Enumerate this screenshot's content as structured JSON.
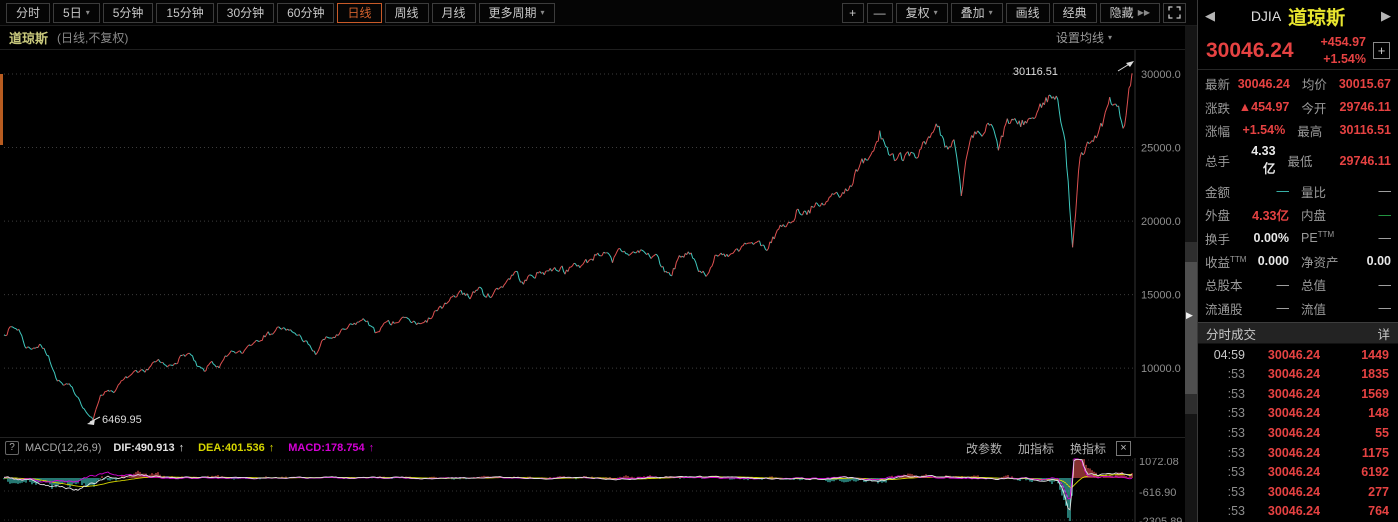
{
  "colors": {
    "up": "#dd5050",
    "down": "#3fc8be",
    "red": "#e64242",
    "cyan": "#3fc8be",
    "green": "#27a84a",
    "white": "#e8e8e8",
    "gray": "#b4b4b4",
    "yellow": "#d6d600",
    "magenta": "#d400d4",
    "accent_orange": "#c85a28",
    "grid": "#3c3c3c",
    "axis_text": "#8e8e8e"
  },
  "toolbar": {
    "period_tabs": [
      {
        "id": "intraday",
        "label": "分时",
        "selected": false,
        "dropdown": false
      },
      {
        "id": "5day",
        "label": "5日",
        "selected": false,
        "dropdown": true
      },
      {
        "id": "5min",
        "label": "5分钟",
        "selected": false,
        "dropdown": false
      },
      {
        "id": "15min",
        "label": "15分钟",
        "selected": false,
        "dropdown": false
      },
      {
        "id": "30min",
        "label": "30分钟",
        "selected": false,
        "dropdown": false
      },
      {
        "id": "60min",
        "label": "60分钟",
        "selected": false,
        "dropdown": false
      },
      {
        "id": "daily",
        "label": "日线",
        "selected": true,
        "dropdown": false
      },
      {
        "id": "weekly",
        "label": "周线",
        "selected": false,
        "dropdown": false
      },
      {
        "id": "monthly",
        "label": "月线",
        "selected": false,
        "dropdown": false
      },
      {
        "id": "more-periods",
        "label": "更多周期",
        "selected": false,
        "dropdown": true
      }
    ],
    "zoom_in": "+",
    "zoom_out": "—",
    "right_buttons": [
      {
        "id": "adjust",
        "label": "复权",
        "dropdown": true
      },
      {
        "id": "overlay",
        "label": "叠加",
        "dropdown": true
      },
      {
        "id": "draw-line",
        "label": "画线",
        "dropdown": false
      },
      {
        "id": "classic",
        "label": "经典",
        "dropdown": false
      },
      {
        "id": "hide",
        "label": "隐藏",
        "suffix": "▶▶",
        "dropdown": false
      }
    ]
  },
  "chart_header": {
    "title": "道琼斯",
    "subtitle": "(日线,不复权)",
    "ma_settings": "设置均线",
    "caret": "▾"
  },
  "chart_data": {
    "type": "candlestick-line",
    "title": "道琼斯 (日线,不复权)",
    "x_range": [
      "2008-03",
      "2020-11"
    ],
    "interval": "monthly",
    "y_ticks": [
      30000.0,
      25000.0,
      20000.0,
      15000.0,
      10000.0
    ],
    "y_range": [
      5300,
      31500
    ],
    "grid": "dotted-horizontal",
    "annotations": {
      "high": {
        "label": "30116.51",
        "value": 30116.51
      },
      "low": {
        "label": "6469.95",
        "value": 6469.95
      }
    },
    "series": [
      {
        "name": "DJIA",
        "values": [
          12263,
          12820,
          12638,
          11350,
          11378,
          11544,
          10851,
          9325,
          8829,
          8776,
          8001,
          7063,
          6470,
          8168,
          8500,
          8447,
          9172,
          9496,
          9712,
          9713,
          10345,
          10428,
          10067,
          10325,
          10857,
          11009,
          10137,
          9774,
          10466,
          10015,
          10788,
          11118,
          11006,
          11578,
          11892,
          12226,
          12320,
          12811,
          12570,
          12414,
          12143,
          11614,
          10913,
          11955,
          12046,
          12218,
          12633,
          12952,
          13212,
          13214,
          12393,
          12880,
          13009,
          13091,
          13437,
          13096,
          13026,
          13104,
          13861,
          14054,
          14579,
          14840,
          15116,
          14910,
          15500,
          14810,
          15130,
          15546,
          16086,
          16577,
          15699,
          16322,
          16458,
          16581,
          16717,
          16827,
          16563,
          17098,
          17043,
          17391,
          17828,
          17823,
          17165,
          18133,
          17776,
          17841,
          18011,
          17620,
          17690,
          16528,
          16285,
          17664,
          17720,
          17425,
          16466,
          16517,
          17685,
          17774,
          17787,
          17930,
          18432,
          18401,
          18308,
          18142,
          19124,
          19763,
          19864,
          20812,
          20663,
          20941,
          21009,
          21350,
          21891,
          21948,
          22405,
          23377,
          24272,
          24719,
          26149,
          25029,
          24103,
          24163,
          24416,
          24271,
          25415,
          25965,
          26458,
          25116,
          25538,
          21712,
          25000,
          25916,
          25929,
          26593,
          24815,
          26600,
          26864,
          26403,
          26917,
          27046,
          28051,
          28538,
          28256,
          25409,
          18214,
          24346,
          25383,
          25813,
          26428,
          28430,
          27782,
          26502,
          30046
        ]
      }
    ],
    "macd_pane": {
      "y_ticks": [
        1072.08,
        -616.9,
        -2305.89
      ],
      "envelope": [
        [
          0,
          600
        ],
        [
          0.05,
          900
        ],
        [
          0.1,
          650
        ],
        [
          0.16,
          300
        ],
        [
          0.25,
          220
        ],
        [
          0.4,
          230
        ],
        [
          0.5,
          260
        ],
        [
          0.6,
          300
        ],
        [
          0.68,
          280
        ],
        [
          0.74,
          420
        ],
        [
          0.78,
          520
        ],
        [
          0.82,
          380
        ],
        [
          0.87,
          320
        ],
        [
          0.9,
          420
        ],
        [
          0.93,
          500
        ],
        [
          0.943,
          1400
        ],
        [
          0.948,
          2300
        ],
        [
          0.953,
          1900
        ],
        [
          0.96,
          1000
        ],
        [
          0.975,
          600
        ],
        [
          1,
          500
        ]
      ],
      "bias": [
        [
          0,
          0
        ],
        [
          0.02,
          -0.2
        ],
        [
          0.04,
          -0.55
        ],
        [
          0.07,
          -0.6
        ],
        [
          0.09,
          -0.1
        ],
        [
          0.12,
          0.25
        ],
        [
          0.2,
          0.1
        ],
        [
          0.3,
          0.05
        ],
        [
          0.5,
          0.08
        ],
        [
          0.6,
          0.1
        ],
        [
          0.73,
          -0.15
        ],
        [
          0.78,
          -0.3
        ],
        [
          0.8,
          0.2
        ],
        [
          0.86,
          0.15
        ],
        [
          0.9,
          -0.2
        ],
        [
          0.935,
          -0.4
        ],
        [
          0.9445,
          -1.35
        ],
        [
          0.9495,
          0.9
        ],
        [
          0.955,
          0.75
        ],
        [
          0.965,
          0.3
        ],
        [
          0.98,
          0.35
        ],
        [
          1,
          0.3
        ]
      ]
    }
  },
  "macd": {
    "help_icon": "?",
    "indicator": "MACD(12,26,9)",
    "dif_label": "DIF:",
    "dif_value": "490.913",
    "dea_label": "DEA:",
    "dea_value": "401.536",
    "macd_label": "MACD:",
    "macd_value": "178.754",
    "arrow_up": "↑",
    "actions": [
      {
        "id": "change-params",
        "label": "改参数"
      },
      {
        "id": "add-indicator",
        "label": "加指标"
      },
      {
        "id": "switch-indicator",
        "label": "换指标"
      }
    ],
    "close_icon": "×"
  },
  "divider": {
    "arrow": "▶"
  },
  "quote_panel": {
    "nav_left": "◀",
    "nav_right": "▶",
    "code": "DJIA",
    "name": "道琼斯",
    "price": "30046.24",
    "change": "+454.97",
    "change_pct": "+1.54%",
    "add_icon": "+",
    "fields": [
      {
        "label": "最新",
        "value": "30046.24",
        "color": "red"
      },
      {
        "label": "均价",
        "value": "30015.67",
        "color": "red"
      },
      {
        "label": "涨跌",
        "value": "▲454.97",
        "color": "red"
      },
      {
        "label": "今开",
        "value": "29746.11",
        "color": "red"
      },
      {
        "label": "涨幅",
        "value": "+1.54%",
        "color": "red"
      },
      {
        "label": "最高",
        "value": "30116.51",
        "color": "red"
      },
      {
        "label": "总手",
        "value": "4.33亿",
        "color": "white"
      },
      {
        "label": "最低",
        "value": "29746.11",
        "color": "red"
      },
      {
        "label": "金额",
        "value": "—",
        "color": "cyan"
      },
      {
        "label": "量比",
        "value": "—",
        "color": "gray"
      },
      {
        "label": "外盘",
        "value": "4.33亿",
        "color": "red"
      },
      {
        "label": "内盘",
        "value": "—",
        "color": "green"
      },
      {
        "label": "换手",
        "value": "0.00%",
        "color": "white"
      },
      {
        "label": "PE",
        "sup": "TTM",
        "value": "—",
        "color": "gray"
      },
      {
        "label": "收益",
        "sup": "TTM",
        "value": "0.000",
        "color": "white"
      },
      {
        "label": "净资产",
        "value": "0.00",
        "color": "white"
      },
      {
        "label": "总股本",
        "value": "—",
        "color": "gray"
      },
      {
        "label": "总值",
        "value": "—",
        "color": "gray"
      },
      {
        "label": "流通股",
        "value": "—",
        "color": "gray"
      },
      {
        "label": "流值",
        "value": "—",
        "color": "gray"
      }
    ],
    "trades_header": {
      "title": "分时成交",
      "detail": "详"
    },
    "trades": [
      {
        "time": "04:59",
        "price": "30046.24",
        "vol": "1449"
      },
      {
        "time": ":53",
        "price": "30046.24",
        "vol": "1835"
      },
      {
        "time": ":53",
        "price": "30046.24",
        "vol": "1569"
      },
      {
        "time": ":53",
        "price": "30046.24",
        "vol": "148"
      },
      {
        "time": ":53",
        "price": "30046.24",
        "vol": "55"
      },
      {
        "time": ":53",
        "price": "30046.24",
        "vol": "1175"
      },
      {
        "time": ":53",
        "price": "30046.24",
        "vol": "6192"
      },
      {
        "time": ":53",
        "price": "30046.24",
        "vol": "277"
      },
      {
        "time": ":53",
        "price": "30046.24",
        "vol": "764"
      }
    ]
  }
}
